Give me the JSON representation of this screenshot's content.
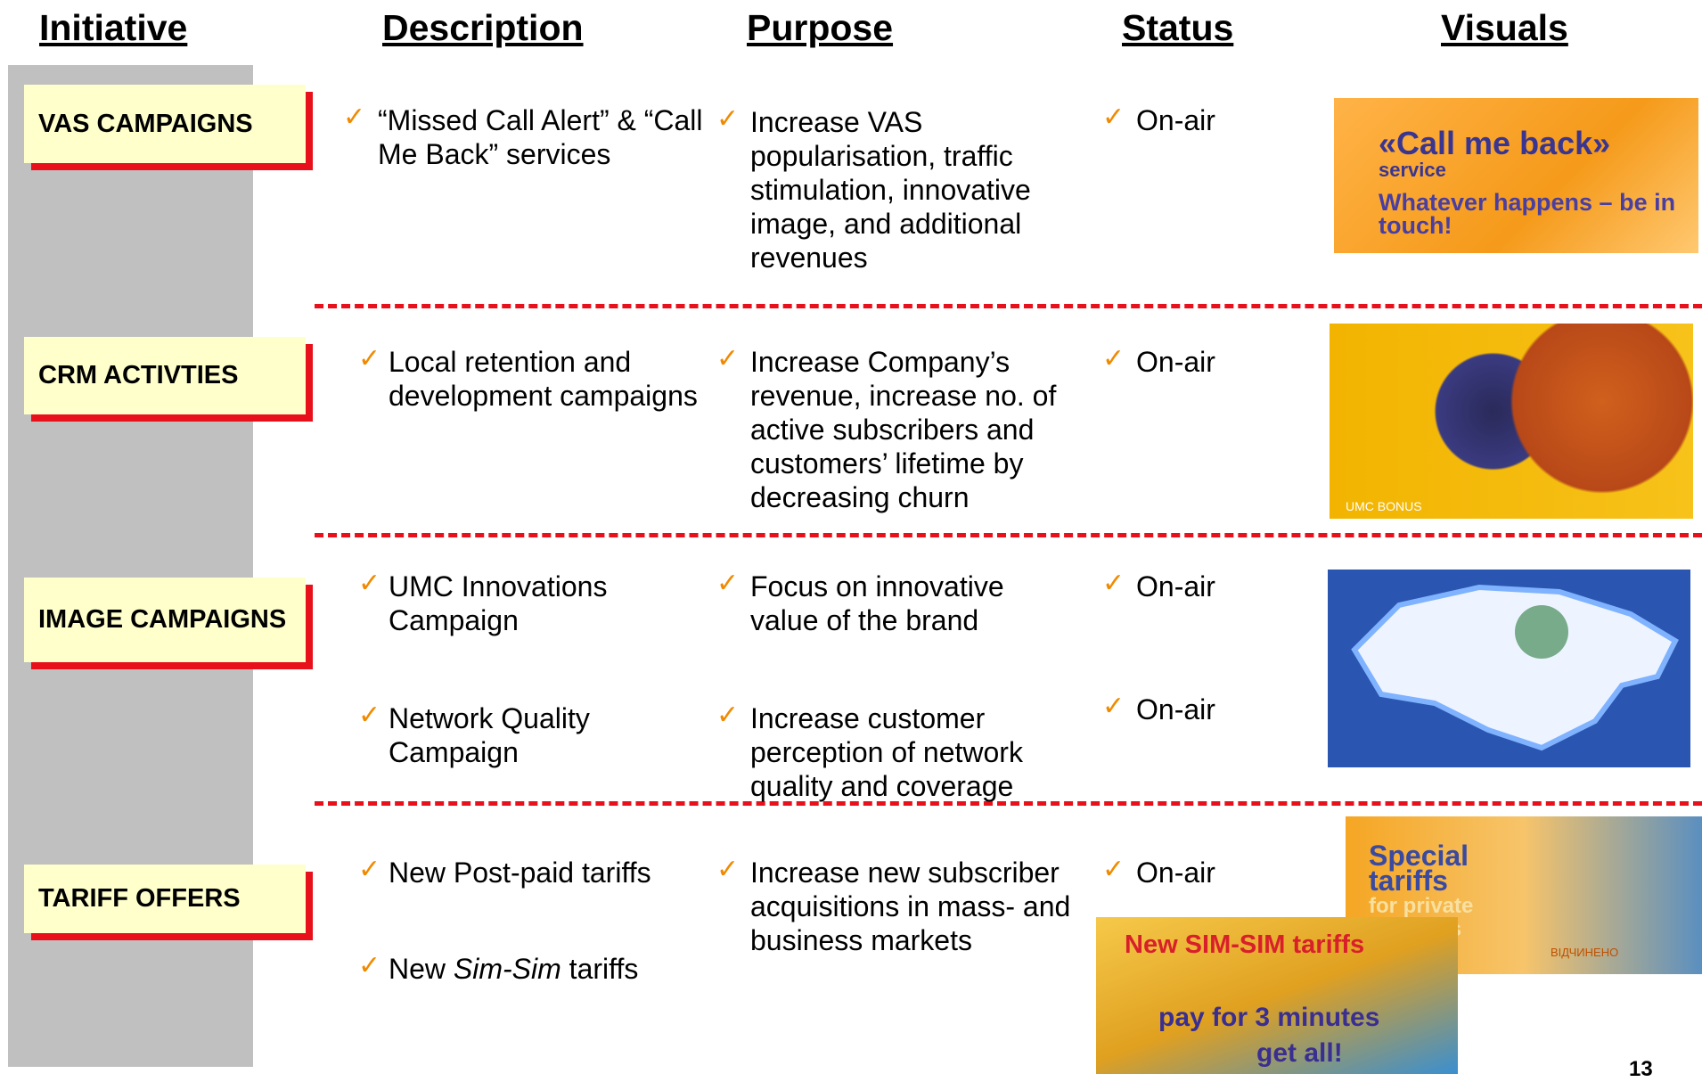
{
  "header": {
    "columns": [
      "Initiative",
      "Description",
      "Purpose",
      "Status",
      "Visuals"
    ]
  },
  "rows": [
    {
      "initiative": "VAS CAMPAIGNS",
      "description": [
        "“Missed Call Alert” & “Call Me Back” services"
      ],
      "purpose": [
        "Increase VAS popularisation, traffic stimulation, innovative image, and additional revenues"
      ],
      "status": [
        "On-air"
      ]
    },
    {
      "initiative": "CRM ACTIVTIES",
      "description": [
        "Local retention and development campaigns"
      ],
      "purpose": [
        "Increase Company’s revenue, increase no. of active subscribers and customers’ lifetime by decreasing churn"
      ],
      "status": [
        "On-air"
      ]
    },
    {
      "initiative": "IMAGE CAMPAIGNS",
      "description": [
        "UMC Innovations Campaign",
        "Network Quality Campaign"
      ],
      "purpose": [
        "Focus on innovative value of the brand",
        "Increase customer perception of network quality and coverage"
      ],
      "status": [
        "On-air",
        "On-air"
      ]
    },
    {
      "initiative": "TARIFF OFFERS",
      "description": [
        "New Post-paid tariffs",
        [
          "New",
          "Sim-Sim",
          "tariffs"
        ]
      ],
      "purpose": [
        "Increase new subscriber acquisitions in mass- and business markets"
      ],
      "status": [
        "On-air"
      ]
    }
  ],
  "visuals": {
    "call_me_back": {
      "title": "«Call me back»",
      "sub": "service",
      "slogan": "Whatever happens – be in touch!"
    },
    "crm": {
      "caption": "UMC BONUS"
    },
    "tariffs": {
      "title": "Special tariffs",
      "sub": "for private business",
      "sign": "ВІДЧИНЕНО"
    },
    "simsim": {
      "title": "New SIM-SIM tariffs",
      "line1": "pay for 3 minutes",
      "line2": "get all!"
    }
  },
  "page_number": "13"
}
